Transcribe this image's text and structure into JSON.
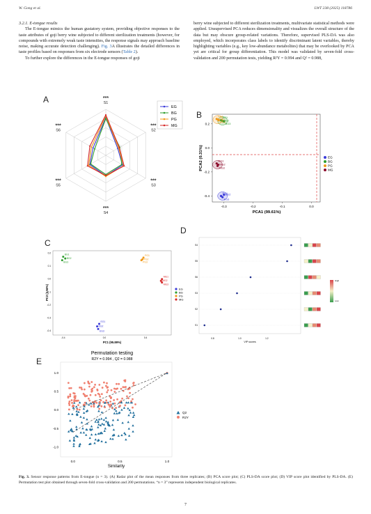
{
  "header": {
    "left": "W. Gong et al.",
    "right": "LWT 238 (2025) 118786"
  },
  "left_col": {
    "section": "3.2.1.  E-tongue results",
    "p1_a": "The E-tongue mimics the human gustatory system, providing objective responses to the taste attributes of goji berry wine subjected to different sterilization treatments (however, for compounds with extremely weak taste intensities, the response signals may approach baseline noise, making accurate detection challenging).",
    "p1_fig": "Fig. 3",
    "p1_b": "A illustrates the detailed differences in taste profiles based on responses from six electrode sensors (",
    "p1_tab": "Table 2",
    "p1_c": ").",
    "p2": "To further explore the differences in the E-tongue responses of goji"
  },
  "right_col": {
    "p1": "berry wine subjected to different sterilization treatments, multivariate statistical methods were applied. Unsupervised PCA reduces dimensionality and visualizes the overall structure of the data but may obscure group-related variations. Therefore, supervised PLS-DA was also employed, which incorporates class labels to identify discriminant latent variables, thereby highlighting variables (e.g., key low-abundance metabolites) that may be overlooked by PCA yet are critical for group differentiation. This model was validated by seven-fold cross-validation and 200 permutation tests, yielding R²Y = 0.994 and Q² = 0.988,"
  },
  "panels": {
    "A": {
      "letter": "A",
      "axes": [
        "S1",
        "S2",
        "S3",
        "S4",
        "S5",
        "S6"
      ],
      "sig": "***",
      "legend": [
        "EG",
        "BG",
        "PG",
        "MG"
      ],
      "colors": [
        "#3b3bd9",
        "#2e9e2e",
        "#f09a1a",
        "#d62828"
      ]
    },
    "B": {
      "letter": "B",
      "xlabel": "PCA1 (99.61%)",
      "ylabel": "PCA2 (0.31%)",
      "xticks": [
        "-0.3",
        "-0.2",
        "-0.1",
        "0.0"
      ],
      "yticks": [
        "0.2",
        "0.0",
        "-0.2",
        "-0.4"
      ],
      "legend": [
        "EG",
        "BG",
        "PG",
        "MG"
      ],
      "labels": {
        "pg": [
          "PG1",
          "PG2",
          "PG3"
        ],
        "bg": [
          "BG1",
          "BG2",
          "BG3"
        ],
        "mg": [
          "MG1",
          "MG2",
          "MG3"
        ],
        "eg": [
          "EG1",
          "EG2",
          "EG3"
        ]
      }
    },
    "C": {
      "letter": "C",
      "xlabel": "PC1 (95.89%)",
      "ylabel": "PC2 (3.56%)",
      "legend": [
        "EG",
        "BG",
        "PG",
        "MG"
      ],
      "labels": {
        "bg": [
          "BG1",
          "BG2",
          "BG3"
        ],
        "pg": [
          "PG1",
          "PG2",
          "PG3"
        ],
        "mg": [
          "MG1",
          "MG2",
          "MG3"
        ],
        "eg": [
          "EG1",
          "EG2",
          "EG3"
        ]
      }
    },
    "D": {
      "letter": "D",
      "xlabel": "VIP scores",
      "ylabels": [
        "S4",
        "S5",
        "S6",
        "S3",
        "S2",
        "S1"
      ],
      "xticks": [
        "0.8",
        "1.0",
        "1.2"
      ],
      "colorbar": [
        "High",
        "Low"
      ]
    },
    "E": {
      "letter": "E",
      "title": "Permutation testing",
      "subtitle": "R2Y = 0.994 , Q2 = 0.988",
      "xlabel": "Similarity",
      "xticks": [
        "0.0",
        "0.5",
        "1.0"
      ],
      "yticks": [
        "1.0",
        "0.5",
        "0.0",
        "-0.5",
        "-1.0"
      ],
      "legend": [
        "Q2",
        "R2Y"
      ],
      "colors": {
        "q2": "#1f6e9c",
        "r2y": "#f08070"
      }
    }
  },
  "chart_data": [
    {
      "type": "radar",
      "categories": [
        "S1",
        "S2",
        "S3",
        "S4",
        "S5",
        "S6"
      ],
      "series": [
        {
          "name": "EG",
          "values": [
            0.82,
            0.3,
            0.42,
            0.45,
            0.4,
            0.32
          ]
        },
        {
          "name": "BG",
          "values": [
            0.8,
            0.35,
            0.4,
            0.42,
            0.38,
            0.28
          ]
        },
        {
          "name": "PG",
          "values": [
            0.86,
            0.32,
            0.45,
            0.46,
            0.43,
            0.36
          ]
        },
        {
          "name": "MG",
          "values": [
            0.88,
            0.34,
            0.46,
            0.44,
            0.46,
            0.4
          ]
        }
      ]
    },
    {
      "type": "scatter",
      "xlabel": "PCA1 (99.61%)",
      "ylabel": "PCA2 (0.31%)",
      "xlim": [
        -0.34,
        0.03
      ],
      "ylim": [
        -0.45,
        0.28
      ],
      "series": [
        {
          "name": "EG",
          "points": [
            [
              -0.31,
              -0.4
            ],
            [
              -0.3,
              -0.39
            ],
            [
              -0.305,
              -0.41
            ]
          ]
        },
        {
          "name": "BG",
          "points": [
            [
              -0.31,
              0.23
            ],
            [
              -0.305,
              0.225
            ],
            [
              -0.3,
              0.22
            ]
          ]
        },
        {
          "name": "PG",
          "points": [
            [
              -0.325,
              0.24
            ],
            [
              -0.32,
              0.235
            ],
            [
              -0.318,
              0.23
            ]
          ]
        },
        {
          "name": "MG",
          "points": [
            [
              -0.325,
              -0.13
            ],
            [
              -0.32,
              -0.14
            ],
            [
              -0.322,
              -0.15
            ]
          ]
        }
      ]
    },
    {
      "type": "scatter",
      "xlabel": "PC1 (95.89%)",
      "ylabel": "PC2 (3.56%)",
      "series": [
        {
          "name": "EG",
          "points": [
            [
              -0.05,
              -0.52
            ],
            [
              -0.07,
              -0.55
            ],
            [
              -0.06,
              -0.58
            ]
          ]
        },
        {
          "name": "BG",
          "points": [
            [
              -0.4,
              0.26
            ],
            [
              -0.38,
              0.24
            ],
            [
              -0.41,
              0.22
            ]
          ]
        },
        {
          "name": "PG",
          "points": [
            [
              0.38,
              0.25
            ],
            [
              0.37,
              0.23
            ],
            [
              0.36,
              0.22
            ]
          ]
        },
        {
          "name": "MG",
          "points": [
            [
              0.56,
              0.0
            ],
            [
              0.55,
              -0.02
            ],
            [
              0.56,
              -0.04
            ]
          ]
        }
      ]
    },
    {
      "type": "scatter",
      "xlabel": "VIP scores",
      "categories": [
        "S4",
        "S5",
        "S6",
        "S3",
        "S2",
        "S1"
      ],
      "values": [
        1.38,
        1.35,
        1.08,
        0.98,
        0.86,
        0.74
      ]
    },
    {
      "type": "scatter",
      "title": "Permutation testing",
      "xlabel": "Similarity",
      "series": [
        {
          "name": "R2Y",
          "intercept": 0.0,
          "point_at_1": 1.0
        },
        {
          "name": "Q2",
          "intercept": -0.6,
          "point_at_1": 1.0
        }
      ]
    }
  ],
  "caption": {
    "label": "Fig. 3.",
    "text": " Sensor response patterns from E-tongue (n = 3). (A) Radar plot of the mean responses from three replicates; (B) PCA score plot; (C) PLS-DA score plot; (D) VIP score plot identified by PLS-DA. (E) Permutation test plot obtained through seven-fold cross-validation and 200 permutations. “n = 3” represents independent biological replicates."
  },
  "page_number": "7"
}
